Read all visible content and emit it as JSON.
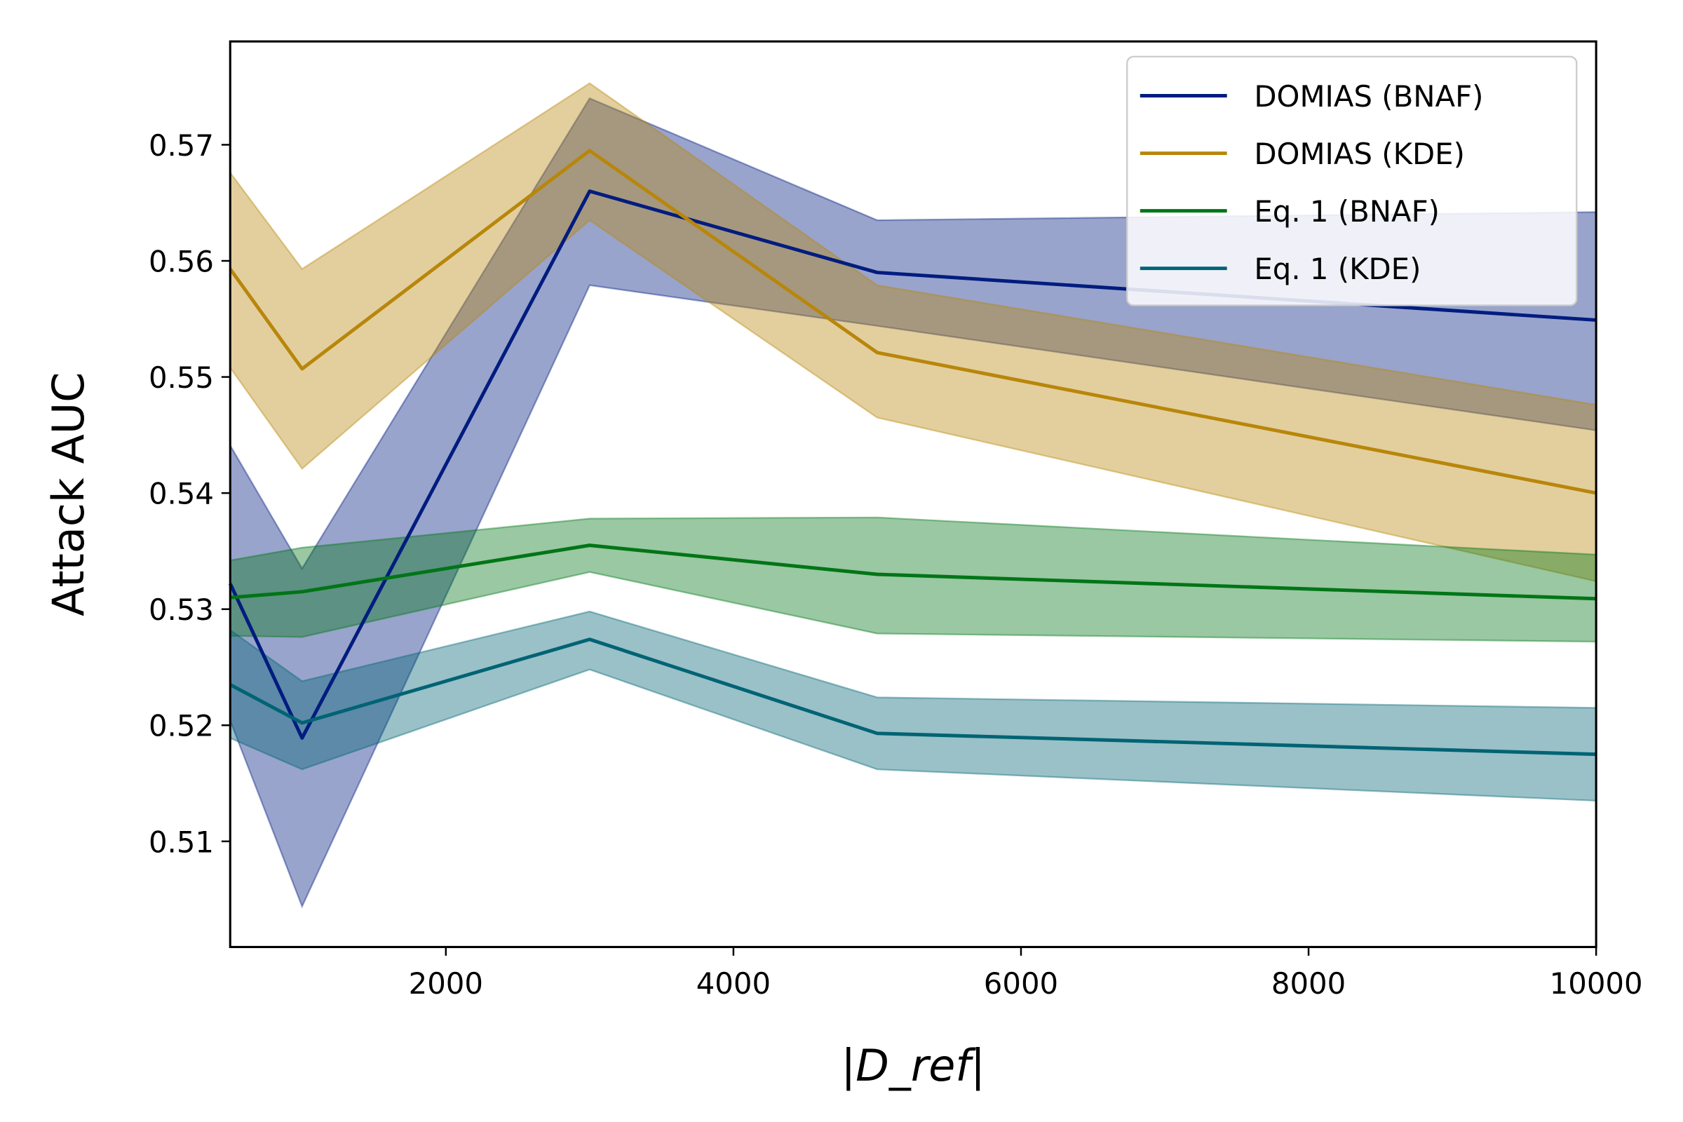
{
  "chart_data": {
    "type": "line",
    "title": "",
    "xlabel": "|D_ref|",
    "ylabel": "Attack AUC",
    "xlim": [
      500,
      10000
    ],
    "ylim": [
      0.5009,
      0.5789
    ],
    "xticks": [
      2000,
      4000,
      6000,
      8000,
      10000
    ],
    "yticks": [
      0.51,
      0.52,
      0.53,
      0.54,
      0.55,
      0.56,
      0.57
    ],
    "xtick_labels": [
      "2000",
      "4000",
      "6000",
      "8000",
      "10000"
    ],
    "ytick_labels": [
      "0.51",
      "0.52",
      "0.53",
      "0.54",
      "0.55",
      "0.56",
      "0.57"
    ],
    "grid": false,
    "legend_position": "top-right",
    "x": [
      500,
      1000,
      3000,
      5000,
      10000
    ],
    "series": [
      {
        "name": "DOMIAS (BNAF)",
        "color": "#001c7f",
        "values": [
          0.5322,
          0.5189,
          0.566,
          0.559,
          0.5549
        ],
        "upper": [
          0.5441,
          0.5335,
          0.574,
          0.5635,
          0.5642
        ],
        "lower": [
          0.5204,
          0.5044,
          0.5579,
          0.5544,
          0.5454
        ]
      },
      {
        "name": "DOMIAS (KDE)",
        "color": "#b8860b",
        "values": [
          0.5593,
          0.5507,
          0.5695,
          0.5521,
          0.54
        ],
        "upper": [
          0.5676,
          0.5593,
          0.5753,
          0.5579,
          0.5476
        ],
        "lower": [
          0.5508,
          0.5421,
          0.5635,
          0.5465,
          0.5324
        ]
      },
      {
        "name": "Eq. 1 (BNAF)",
        "color": "#017517",
        "values": [
          0.531,
          0.5315,
          0.5355,
          0.533,
          0.5309
        ],
        "upper": [
          0.5342,
          0.5353,
          0.5378,
          0.5379,
          0.5347
        ],
        "lower": [
          0.5277,
          0.5276,
          0.5332,
          0.5279,
          0.5272
        ]
      },
      {
        "name": "Eq. 1 (KDE)",
        "color": "#006374",
        "values": [
          0.5235,
          0.5202,
          0.5274,
          0.5193,
          0.5175
        ],
        "upper": [
          0.5282,
          0.5238,
          0.5298,
          0.5224,
          0.5215
        ],
        "lower": [
          0.5189,
          0.5162,
          0.5248,
          0.5162,
          0.5135
        ]
      }
    ]
  }
}
